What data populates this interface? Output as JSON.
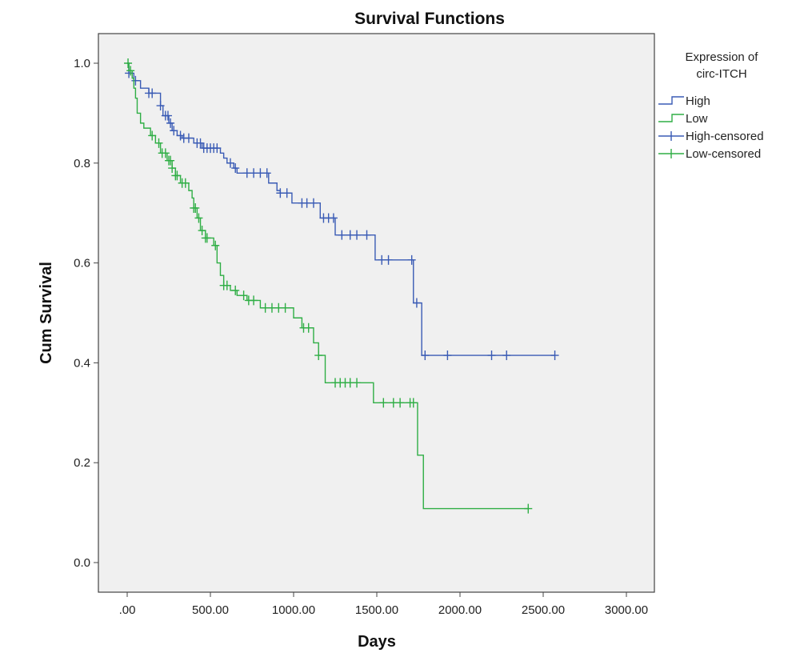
{
  "chart_data": {
    "type": "line",
    "subtype": "kaplan-meier",
    "title": "Survival Functions",
    "xlabel": "Days",
    "ylabel": "Cum Survival",
    "xlim": [
      -170,
      3170
    ],
    "ylim": [
      -0.06,
      1.06
    ],
    "xticks": [
      0,
      500,
      1000,
      1500,
      2000,
      2500,
      3000
    ],
    "xtick_labels": [
      ".00",
      "500.00",
      "1000.00",
      "1500.00",
      "2000.00",
      "2500.00",
      "3000.00"
    ],
    "yticks": [
      0,
      0.2,
      0.4,
      0.6,
      0.8,
      1.0
    ],
    "ytick_labels": [
      "0.0",
      "0.2",
      "0.4",
      "0.6",
      "0.8",
      "1.0"
    ],
    "legend": {
      "title_lines": [
        "Expression of",
        "circ-ITCH"
      ],
      "placement": "right-outside",
      "entries": [
        "High",
        "Low",
        "High-censored",
        "Low-censored"
      ]
    },
    "series": [
      {
        "name": "High",
        "color": "#3a5bb5",
        "steps": [
          [
            0,
            1.0
          ],
          [
            10,
            0.98
          ],
          [
            40,
            0.965
          ],
          [
            80,
            0.95
          ],
          [
            130,
            0.94
          ],
          [
            200,
            0.915
          ],
          [
            215,
            0.895
          ],
          [
            250,
            0.88
          ],
          [
            270,
            0.865
          ],
          [
            300,
            0.855
          ],
          [
            330,
            0.85
          ],
          [
            400,
            0.84
          ],
          [
            450,
            0.83
          ],
          [
            560,
            0.82
          ],
          [
            580,
            0.81
          ],
          [
            600,
            0.8
          ],
          [
            640,
            0.79
          ],
          [
            660,
            0.78
          ],
          [
            850,
            0.76
          ],
          [
            900,
            0.745
          ],
          [
            920,
            0.74
          ],
          [
            990,
            0.72
          ],
          [
            1160,
            0.69
          ],
          [
            1250,
            0.656
          ],
          [
            1490,
            0.606
          ],
          [
            1720,
            0.52
          ],
          [
            1770,
            0.415
          ]
        ],
        "end": 2570,
        "censored": [
          10,
          50,
          130,
          150,
          200,
          230,
          245,
          260,
          280,
          320,
          340,
          370,
          420,
          440,
          460,
          480,
          500,
          520,
          540,
          620,
          650,
          720,
          760,
          800,
          840,
          920,
          960,
          1050,
          1080,
          1120,
          1180,
          1210,
          1240,
          1290,
          1340,
          1380,
          1440,
          1530,
          1570,
          1710,
          1740,
          1790,
          1925,
          2190,
          2280,
          2570
        ]
      },
      {
        "name": "Low",
        "color": "#2fae45",
        "steps": [
          [
            0,
            1.0
          ],
          [
            10,
            0.985
          ],
          [
            30,
            0.97
          ],
          [
            40,
            0.95
          ],
          [
            50,
            0.93
          ],
          [
            60,
            0.9
          ],
          [
            80,
            0.88
          ],
          [
            100,
            0.87
          ],
          [
            140,
            0.855
          ],
          [
            170,
            0.84
          ],
          [
            200,
            0.82
          ],
          [
            240,
            0.805
          ],
          [
            270,
            0.79
          ],
          [
            290,
            0.775
          ],
          [
            320,
            0.76
          ],
          [
            370,
            0.745
          ],
          [
            390,
            0.73
          ],
          [
            400,
            0.71
          ],
          [
            420,
            0.69
          ],
          [
            440,
            0.665
          ],
          [
            470,
            0.65
          ],
          [
            520,
            0.635
          ],
          [
            540,
            0.6
          ],
          [
            560,
            0.575
          ],
          [
            580,
            0.555
          ],
          [
            620,
            0.545
          ],
          [
            660,
            0.535
          ],
          [
            720,
            0.525
          ],
          [
            800,
            0.51
          ],
          [
            1000,
            0.49
          ],
          [
            1050,
            0.47
          ],
          [
            1120,
            0.44
          ],
          [
            1150,
            0.415
          ],
          [
            1190,
            0.36
          ],
          [
            1480,
            0.32
          ],
          [
            1745,
            0.215
          ],
          [
            1780,
            0.108
          ]
        ],
        "end": 2410,
        "censored": [
          5,
          20,
          150,
          190,
          210,
          230,
          250,
          260,
          270,
          290,
          300,
          330,
          350,
          400,
          410,
          430,
          450,
          470,
          480,
          530,
          580,
          600,
          650,
          700,
          730,
          760,
          830,
          870,
          910,
          950,
          1060,
          1090,
          1150,
          1250,
          1280,
          1310,
          1340,
          1380,
          1540,
          1600,
          1640,
          1700,
          1720,
          2410
        ]
      }
    ]
  }
}
